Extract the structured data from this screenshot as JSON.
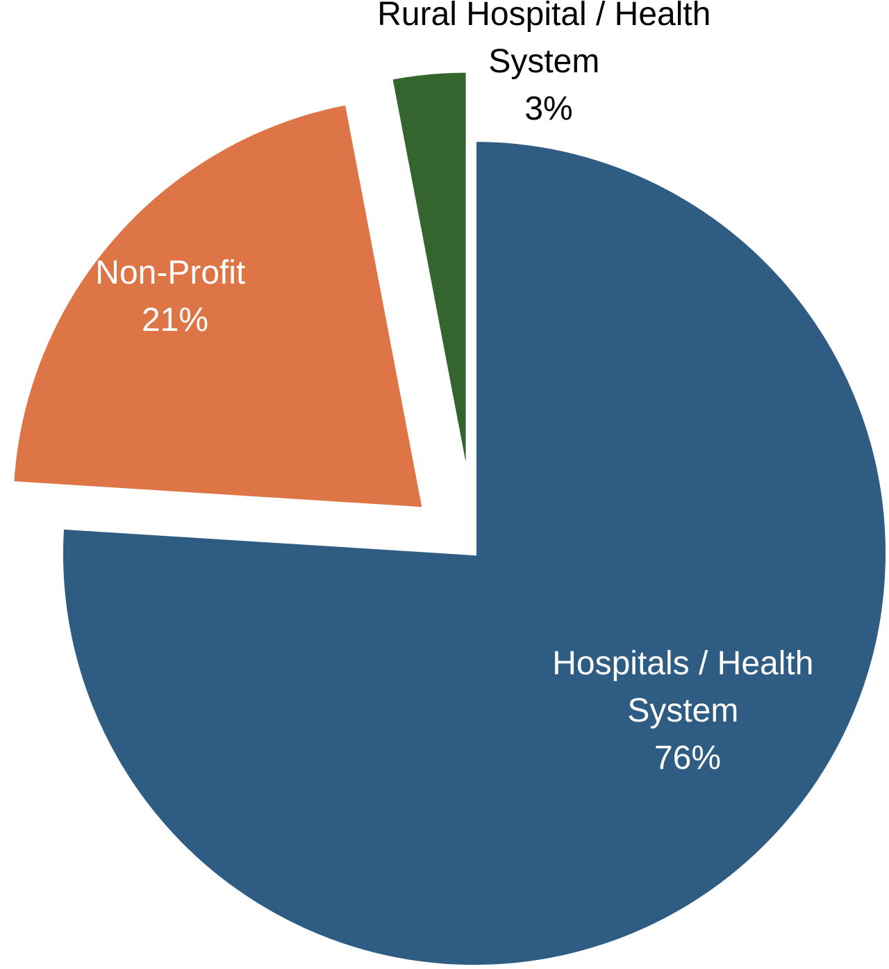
{
  "chart_data": {
    "type": "pie",
    "title": "",
    "slices": [
      {
        "label": "Hospitals / Health System",
        "label_lines": [
          "Hospitals / Health",
          "System"
        ],
        "value_text": "76%",
        "value": 76,
        "color": "#2E5C82",
        "text_color": "#FFFFFF"
      },
      {
        "label": "Non-Profit",
        "label_lines": [
          "Non-Profit"
        ],
        "value_text": "21%",
        "value": 21,
        "color": "#DD7546",
        "text_color": "#FFFFFF"
      },
      {
        "label": "Rural Hospital / Health System",
        "label_lines": [
          "Rural Hospital / Health",
          "System"
        ],
        "value_text": "3%",
        "value": 3,
        "color": "#35652E",
        "text_color": "#000000"
      }
    ],
    "exploded": true,
    "legend": "none"
  }
}
